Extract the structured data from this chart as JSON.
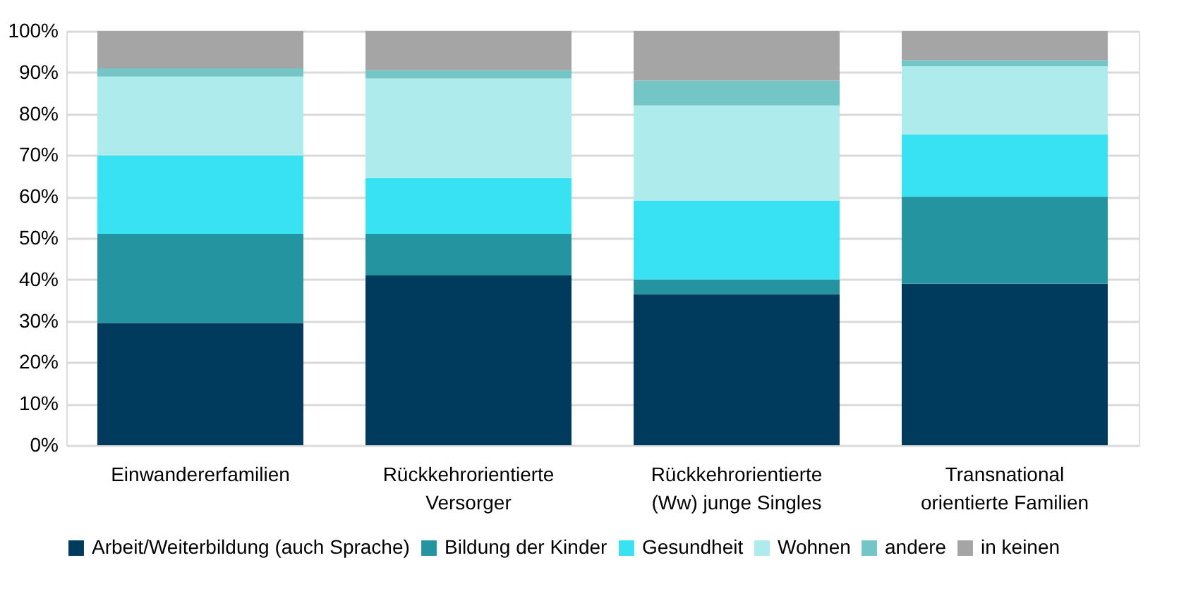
{
  "chart_data": {
    "type": "bar",
    "stacked": true,
    "categories": [
      "Einwandererfamilien",
      "Rückkehrorientierte Versorger",
      "Rückkehrorientierte (Ww) junge Singles",
      "Transnational orientierte Familien"
    ],
    "series": [
      {
        "name": "Arbeit/Weiterbildung (auch Sprache)",
        "color": "#003a5d",
        "values": [
          29.5,
          41,
          36.5,
          39
        ]
      },
      {
        "name": "Bildung der Kinder",
        "color": "#2394a0",
        "values": [
          21.5,
          10,
          3.5,
          21
        ]
      },
      {
        "name": "Gesundheit",
        "color": "#38e2f2",
        "values": [
          19,
          13.5,
          19,
          15
        ]
      },
      {
        "name": "Wohnen",
        "color": "#aeebec",
        "values": [
          19,
          24,
          23,
          16.5
        ]
      },
      {
        "name": "andere",
        "color": "#74c6c6",
        "values": [
          2,
          2,
          6,
          1.5
        ]
      },
      {
        "name": "in keinen",
        "color": "#a5a5a5",
        "values": [
          9,
          9.5,
          12,
          7
        ]
      }
    ],
    "ylim": [
      0,
      100
    ],
    "yticks": [
      {
        "value": 0,
        "label": "0%"
      },
      {
        "value": 10,
        "label": "10%"
      },
      {
        "value": 20,
        "label": "20%"
      },
      {
        "value": 30,
        "label": "30%"
      },
      {
        "value": 40,
        "label": "40%"
      },
      {
        "value": 50,
        "label": "50%"
      },
      {
        "value": 60,
        "label": "60%"
      },
      {
        "value": 70,
        "label": "70%"
      },
      {
        "value": 80,
        "label": "80%"
      },
      {
        "value": 90,
        "label": "90%"
      },
      {
        "value": 100,
        "label": "100%"
      }
    ],
    "grid": "y",
    "legend": "bottom"
  }
}
